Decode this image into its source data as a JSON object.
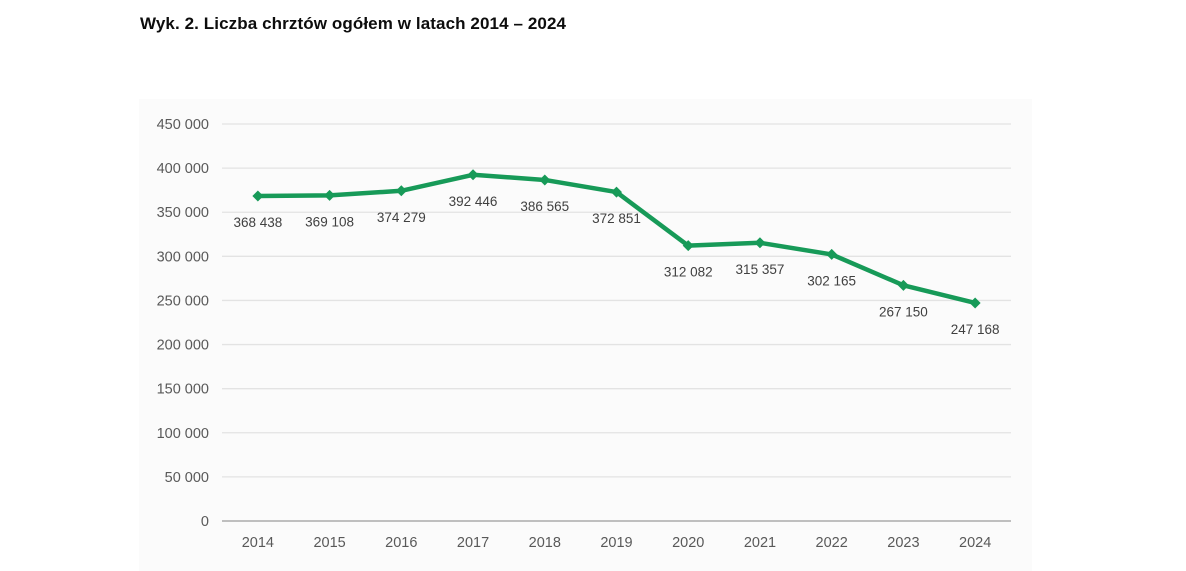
{
  "title": "Wyk. 2. Liczba chrztów ogółem w latach 2014 – 2024",
  "chart_data": {
    "type": "line",
    "title": "Wyk. 2. Liczba chrztów ogółem w latach 2014 – 2024",
    "categories": [
      "2014",
      "2015",
      "2016",
      "2017",
      "2018",
      "2019",
      "2020",
      "2021",
      "2022",
      "2023",
      "2024"
    ],
    "values": [
      368438,
      369108,
      374279,
      392446,
      386565,
      372851,
      312082,
      315357,
      302165,
      267150,
      247168
    ],
    "data_labels": [
      "368 438",
      "369 108",
      "374 279",
      "392 446",
      "386 565",
      "372 851",
      "312 082",
      "315 357",
      "302 165",
      "267 150",
      "247 168"
    ],
    "xlabel": "",
    "ylabel": "",
    "ylim": [
      0,
      450000
    ],
    "y_tick_step": 50000,
    "y_tick_labels": [
      "0",
      "50 000",
      "100 000",
      "150 000",
      "200 000",
      "250 000",
      "300 000",
      "350 000",
      "400 000",
      "450 000"
    ],
    "grid": true,
    "legend": "none",
    "marker": "diamond",
    "colors": {
      "line": "#179a58",
      "marker": "#179a58",
      "gridline": "#e3e3e3",
      "axis_line": "#bfbfbf",
      "axis_text": "#595959",
      "data_label": "#404040",
      "plot_background": "#fbfbfb",
      "title_text": "#0d0d0d"
    }
  }
}
